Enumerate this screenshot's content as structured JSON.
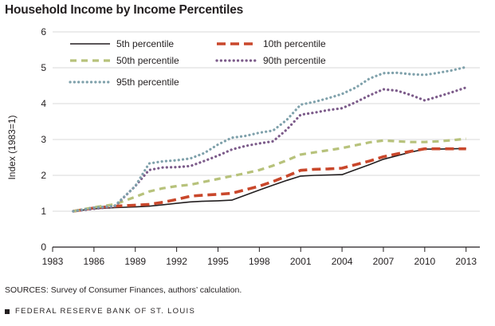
{
  "chart_data": {
    "type": "line",
    "title": "Household Income by Income Percentiles",
    "xlabel": "",
    "ylabel": "Index (1983=1)",
    "xlim": [
      1983,
      2014
    ],
    "ylim": [
      0,
      6
    ],
    "x_ticks": [
      "1983",
      "1986",
      "1989",
      "1992",
      "1995",
      "1998",
      "2001",
      "2004",
      "2007",
      "2010",
      "2013"
    ],
    "y_ticks": [
      "0",
      "1",
      "2",
      "3",
      "4",
      "5",
      "6"
    ],
    "grid": true,
    "legend_position": "top-left, inside plot, two columns",
    "x": [
      1984.5,
      1986,
      1987.5,
      1989,
      1990,
      1991,
      1992,
      1993,
      1994,
      1995,
      1996,
      1997,
      1998,
      1999,
      2000,
      2001,
      2002,
      2003,
      2004,
      2005,
      2006,
      2007,
      2008,
      2009,
      2010,
      2011,
      2012,
      2013
    ],
    "series": [
      {
        "name": "5th percentile",
        "color": "#231f20",
        "dash": "solid",
        "values": [
          1.0,
          1.07,
          1.1,
          1.12,
          1.14,
          1.18,
          1.22,
          1.26,
          1.28,
          1.29,
          1.31,
          1.45,
          1.59,
          1.73,
          1.86,
          1.98,
          2.0,
          2.01,
          2.02,
          2.16,
          2.3,
          2.45,
          2.55,
          2.65,
          2.73,
          2.73,
          2.74,
          2.75
        ]
      },
      {
        "name": "10th percentile",
        "color": "#c9472b",
        "dash": "long-dash",
        "values": [
          1.0,
          1.09,
          1.14,
          1.17,
          1.19,
          1.25,
          1.33,
          1.42,
          1.45,
          1.47,
          1.5,
          1.6,
          1.7,
          1.83,
          1.98,
          2.14,
          2.17,
          2.18,
          2.2,
          2.3,
          2.4,
          2.52,
          2.6,
          2.67,
          2.74,
          2.74,
          2.74,
          2.74
        ]
      },
      {
        "name": "50th percentile",
        "color": "#b7c27b",
        "dash": "dashed",
        "values": [
          1.0,
          1.11,
          1.19,
          1.4,
          1.55,
          1.64,
          1.7,
          1.74,
          1.82,
          1.9,
          1.98,
          2.06,
          2.15,
          2.27,
          2.42,
          2.58,
          2.64,
          2.7,
          2.76,
          2.84,
          2.92,
          2.97,
          2.95,
          2.93,
          2.93,
          2.95,
          2.98,
          3.02
        ]
      },
      {
        "name": "90th percentile",
        "color": "#7c5b8a",
        "dash": "dotted",
        "values": [
          1.0,
          1.07,
          1.13,
          1.7,
          2.15,
          2.22,
          2.23,
          2.26,
          2.4,
          2.55,
          2.72,
          2.82,
          2.89,
          2.95,
          3.28,
          3.69,
          3.75,
          3.82,
          3.87,
          4.04,
          4.23,
          4.4,
          4.36,
          4.24,
          4.09,
          4.2,
          4.32,
          4.45
        ]
      },
      {
        "name": "95th percentile",
        "color": "#7fa1ab",
        "dash": "dotted",
        "values": [
          1.0,
          1.1,
          1.15,
          1.7,
          2.33,
          2.39,
          2.42,
          2.47,
          2.62,
          2.86,
          3.05,
          3.1,
          3.19,
          3.25,
          3.55,
          3.97,
          4.05,
          4.15,
          4.27,
          4.45,
          4.7,
          4.85,
          4.86,
          4.82,
          4.8,
          4.86,
          4.93,
          5.02
        ]
      }
    ]
  },
  "source_text": "SOURCES: Survey of Consumer Finances, authors’ calculation.",
  "footer_text": "FEDERAL RESERVE BANK OF ST. LOUIS"
}
